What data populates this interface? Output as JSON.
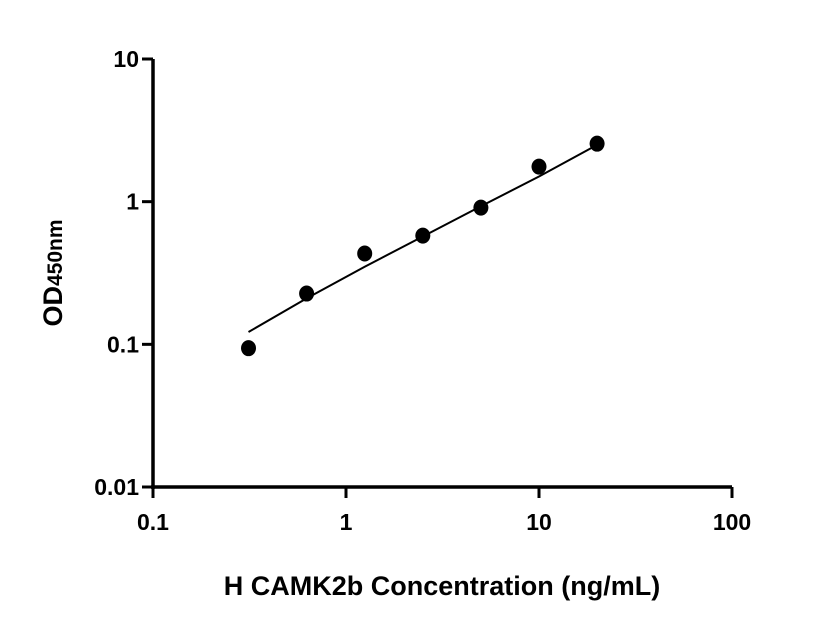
{
  "chart_data": {
    "type": "scatter",
    "title": "",
    "xlabel": "H CAMK2b Concentration (ng/mL)",
    "ylabel_main": "OD",
    "ylabel_sub": "450nm",
    "x_scale": "log",
    "y_scale": "log",
    "xlim": [
      0.1,
      100
    ],
    "ylim": [
      0.01,
      10
    ],
    "x_ticks": [
      "0.1",
      "1",
      "10",
      "100"
    ],
    "y_ticks": [
      "0.01",
      "0.1",
      "1",
      "10"
    ],
    "grid": false,
    "legend": "none",
    "points": {
      "x": [
        0.3125,
        0.625,
        1.25,
        2.5,
        5,
        10,
        20
      ],
      "y": [
        0.094,
        0.227,
        0.433,
        0.578,
        0.908,
        1.76,
        2.55
      ]
    },
    "fit_line": {
      "x": [
        0.3125,
        0.625,
        1.25,
        2.5,
        5,
        10,
        20
      ],
      "y": [
        0.122,
        0.21,
        0.35,
        0.57,
        0.93,
        1.5,
        2.5
      ]
    },
    "colors": {
      "points": "#000000",
      "line": "#000000",
      "axes": "#000000"
    }
  }
}
